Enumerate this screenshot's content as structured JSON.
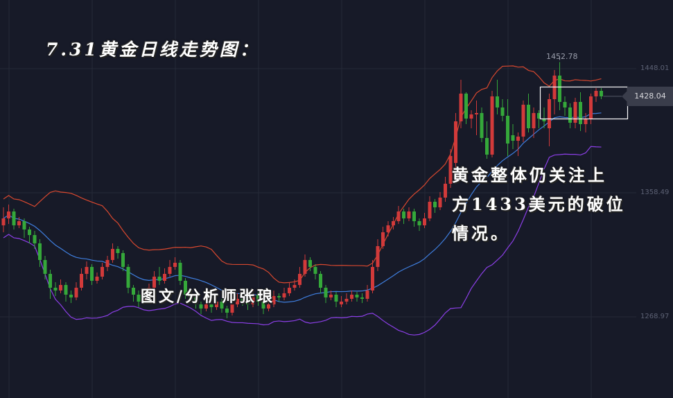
{
  "title": "7.31黄金日线走势图：",
  "author": "图文/分析师张琅",
  "note_lines": [
    "黄金整体仍关注上",
    "方1433美元的破位",
    "情况。"
  ],
  "colors": {
    "background": "#171a28",
    "up": "#d23a3a",
    "down": "#35a83a",
    "upper_band": "#d9482f",
    "middle_band": "#3f7fe0",
    "lower_band": "#8c3fe8",
    "grid": "#262a38",
    "highlight_box": "#ffffff"
  },
  "chart_data": {
    "type": "candlestick",
    "indicator": "Bollinger Bands",
    "y_ticks": [
      "1448.01",
      "1358.49",
      "1268.97"
    ],
    "ylim": [
      1220,
      1470
    ],
    "grid": true,
    "current_price": "1428.04",
    "max_label": "1452.78",
    "highlight_range": {
      "from_candle": 106,
      "to_candle": 116
    },
    "candles_ohlc": [
      [
        1335,
        1348,
        1330,
        1340
      ],
      [
        1340,
        1350,
        1336,
        1345
      ],
      [
        1345,
        1347,
        1332,
        1335
      ],
      [
        1335,
        1341,
        1333,
        1338
      ],
      [
        1338,
        1340,
        1326,
        1332
      ],
      [
        1332,
        1334,
        1322,
        1328
      ],
      [
        1328,
        1331,
        1318,
        1322
      ],
      [
        1322,
        1325,
        1305,
        1310
      ],
      [
        1310,
        1313,
        1296,
        1300
      ],
      [
        1300,
        1303,
        1282,
        1290
      ],
      [
        1290,
        1294,
        1284,
        1288
      ],
      [
        1288,
        1296,
        1286,
        1292
      ],
      [
        1292,
        1294,
        1280,
        1285
      ],
      [
        1285,
        1288,
        1279,
        1283
      ],
      [
        1283,
        1294,
        1281,
        1290
      ],
      [
        1290,
        1304,
        1288,
        1300
      ],
      [
        1300,
        1309,
        1296,
        1305
      ],
      [
        1305,
        1307,
        1292,
        1295
      ],
      [
        1295,
        1301,
        1293,
        1298
      ],
      [
        1298,
        1308,
        1296,
        1305
      ],
      [
        1305,
        1313,
        1302,
        1310
      ],
      [
        1310,
        1322,
        1308,
        1318
      ],
      [
        1318,
        1320,
        1311,
        1315
      ],
      [
        1315,
        1317,
        1302,
        1305
      ],
      [
        1305,
        1307,
        1286,
        1290
      ],
      [
        1290,
        1292,
        1280,
        1285
      ],
      [
        1285,
        1288,
        1276,
        1280
      ],
      [
        1280,
        1286,
        1278,
        1282
      ],
      [
        1282,
        1293,
        1280,
        1290
      ],
      [
        1290,
        1302,
        1288,
        1298
      ],
      [
        1298,
        1305,
        1292,
        1295
      ],
      [
        1295,
        1304,
        1293,
        1300
      ],
      [
        1300,
        1310,
        1298,
        1305
      ],
      [
        1305,
        1312,
        1303,
        1308
      ],
      [
        1308,
        1310,
        1292,
        1295
      ],
      [
        1295,
        1297,
        1282,
        1285
      ],
      [
        1285,
        1288,
        1280,
        1283
      ],
      [
        1283,
        1286,
        1275,
        1278
      ],
      [
        1278,
        1280,
        1271,
        1275
      ],
      [
        1275,
        1282,
        1273,
        1278
      ],
      [
        1278,
        1280,
        1272,
        1276
      ],
      [
        1276,
        1284,
        1274,
        1280
      ],
      [
        1280,
        1282,
        1272,
        1275
      ],
      [
        1275,
        1277,
        1268,
        1272
      ],
      [
        1272,
        1281,
        1270,
        1278
      ],
      [
        1278,
        1286,
        1276,
        1282
      ],
      [
        1282,
        1284,
        1277,
        1280
      ],
      [
        1280,
        1282,
        1274,
        1278
      ],
      [
        1278,
        1289,
        1276,
        1285
      ],
      [
        1285,
        1287,
        1277,
        1280
      ],
      [
        1280,
        1282,
        1271,
        1275
      ],
      [
        1275,
        1281,
        1273,
        1278
      ],
      [
        1278,
        1288,
        1276,
        1284
      ],
      [
        1284,
        1286,
        1280,
        1283
      ],
      [
        1283,
        1290,
        1281,
        1286
      ],
      [
        1286,
        1294,
        1284,
        1290
      ],
      [
        1290,
        1296,
        1288,
        1292
      ],
      [
        1292,
        1305,
        1290,
        1300
      ],
      [
        1300,
        1314,
        1298,
        1310
      ],
      [
        1310,
        1312,
        1302,
        1305
      ],
      [
        1305,
        1307,
        1296,
        1300
      ],
      [
        1300,
        1302,
        1286,
        1290
      ],
      [
        1290,
        1292,
        1279,
        1283
      ],
      [
        1283,
        1288,
        1281,
        1285
      ],
      [
        1285,
        1287,
        1276,
        1280
      ],
      [
        1278,
        1284,
        1276,
        1280
      ],
      [
        1280,
        1286,
        1278,
        1282
      ],
      [
        1282,
        1288,
        1280,
        1285
      ],
      [
        1285,
        1287,
        1280,
        1283
      ],
      [
        1283,
        1286,
        1279,
        1282
      ],
      [
        1282,
        1292,
        1280,
        1288
      ],
      [
        1288,
        1310,
        1286,
        1305
      ],
      [
        1305,
        1325,
        1302,
        1320
      ],
      [
        1320,
        1334,
        1318,
        1330
      ],
      [
        1330,
        1338,
        1327,
        1335
      ],
      [
        1335,
        1341,
        1332,
        1338
      ],
      [
        1338,
        1349,
        1336,
        1345
      ],
      [
        1345,
        1347,
        1336,
        1340
      ],
      [
        1340,
        1348,
        1338,
        1345
      ],
      [
        1345,
        1347,
        1334,
        1338
      ],
      [
        1338,
        1340,
        1331,
        1335
      ],
      [
        1335,
        1344,
        1333,
        1340
      ],
      [
        1340,
        1356,
        1338,
        1352
      ],
      [
        1352,
        1354,
        1344,
        1348
      ],
      [
        1348,
        1359,
        1346,
        1355
      ],
      [
        1355,
        1370,
        1352,
        1365
      ],
      [
        1365,
        1390,
        1362,
        1385
      ],
      [
        1380,
        1416,
        1375,
        1410
      ],
      [
        1410,
        1440,
        1405,
        1430
      ],
      [
        1430,
        1431,
        1408,
        1412
      ],
      [
        1412,
        1418,
        1405,
        1415
      ],
      [
        1415,
        1425,
        1400,
        1416
      ],
      [
        1416,
        1420,
        1395,
        1398
      ],
      [
        1398,
        1410,
        1383,
        1386
      ],
      [
        1386,
        1432,
        1384,
        1428
      ],
      [
        1428,
        1440,
        1415,
        1420
      ],
      [
        1420,
        1426,
        1410,
        1414
      ],
      [
        1414,
        1426,
        1385,
        1394
      ],
      [
        1400,
        1408,
        1390,
        1396
      ],
      [
        1396,
        1402,
        1385,
        1399
      ],
      [
        1399,
        1425,
        1395,
        1422
      ],
      [
        1422,
        1430,
        1402,
        1405
      ],
      [
        1405,
        1420,
        1398,
        1416
      ],
      [
        1416,
        1418,
        1405,
        1412
      ],
      [
        1412,
        1420,
        1405,
        1410
      ],
      [
        1405,
        1430,
        1392,
        1426
      ],
      [
        1426,
        1447,
        1415,
        1443
      ],
      [
        1443,
        1452.78,
        1418,
        1424
      ],
      [
        1424,
        1428,
        1414,
        1420
      ],
      [
        1420,
        1423,
        1405,
        1409
      ],
      [
        1409,
        1427,
        1405,
        1424
      ],
      [
        1424,
        1431,
        1403,
        1408
      ],
      [
        1408,
        1416,
        1402,
        1412
      ],
      [
        1412,
        1430,
        1408,
        1428
      ],
      [
        1428,
        1434,
        1424,
        1432
      ],
      [
        1432,
        1434,
        1426,
        1428.04
      ]
    ]
  }
}
